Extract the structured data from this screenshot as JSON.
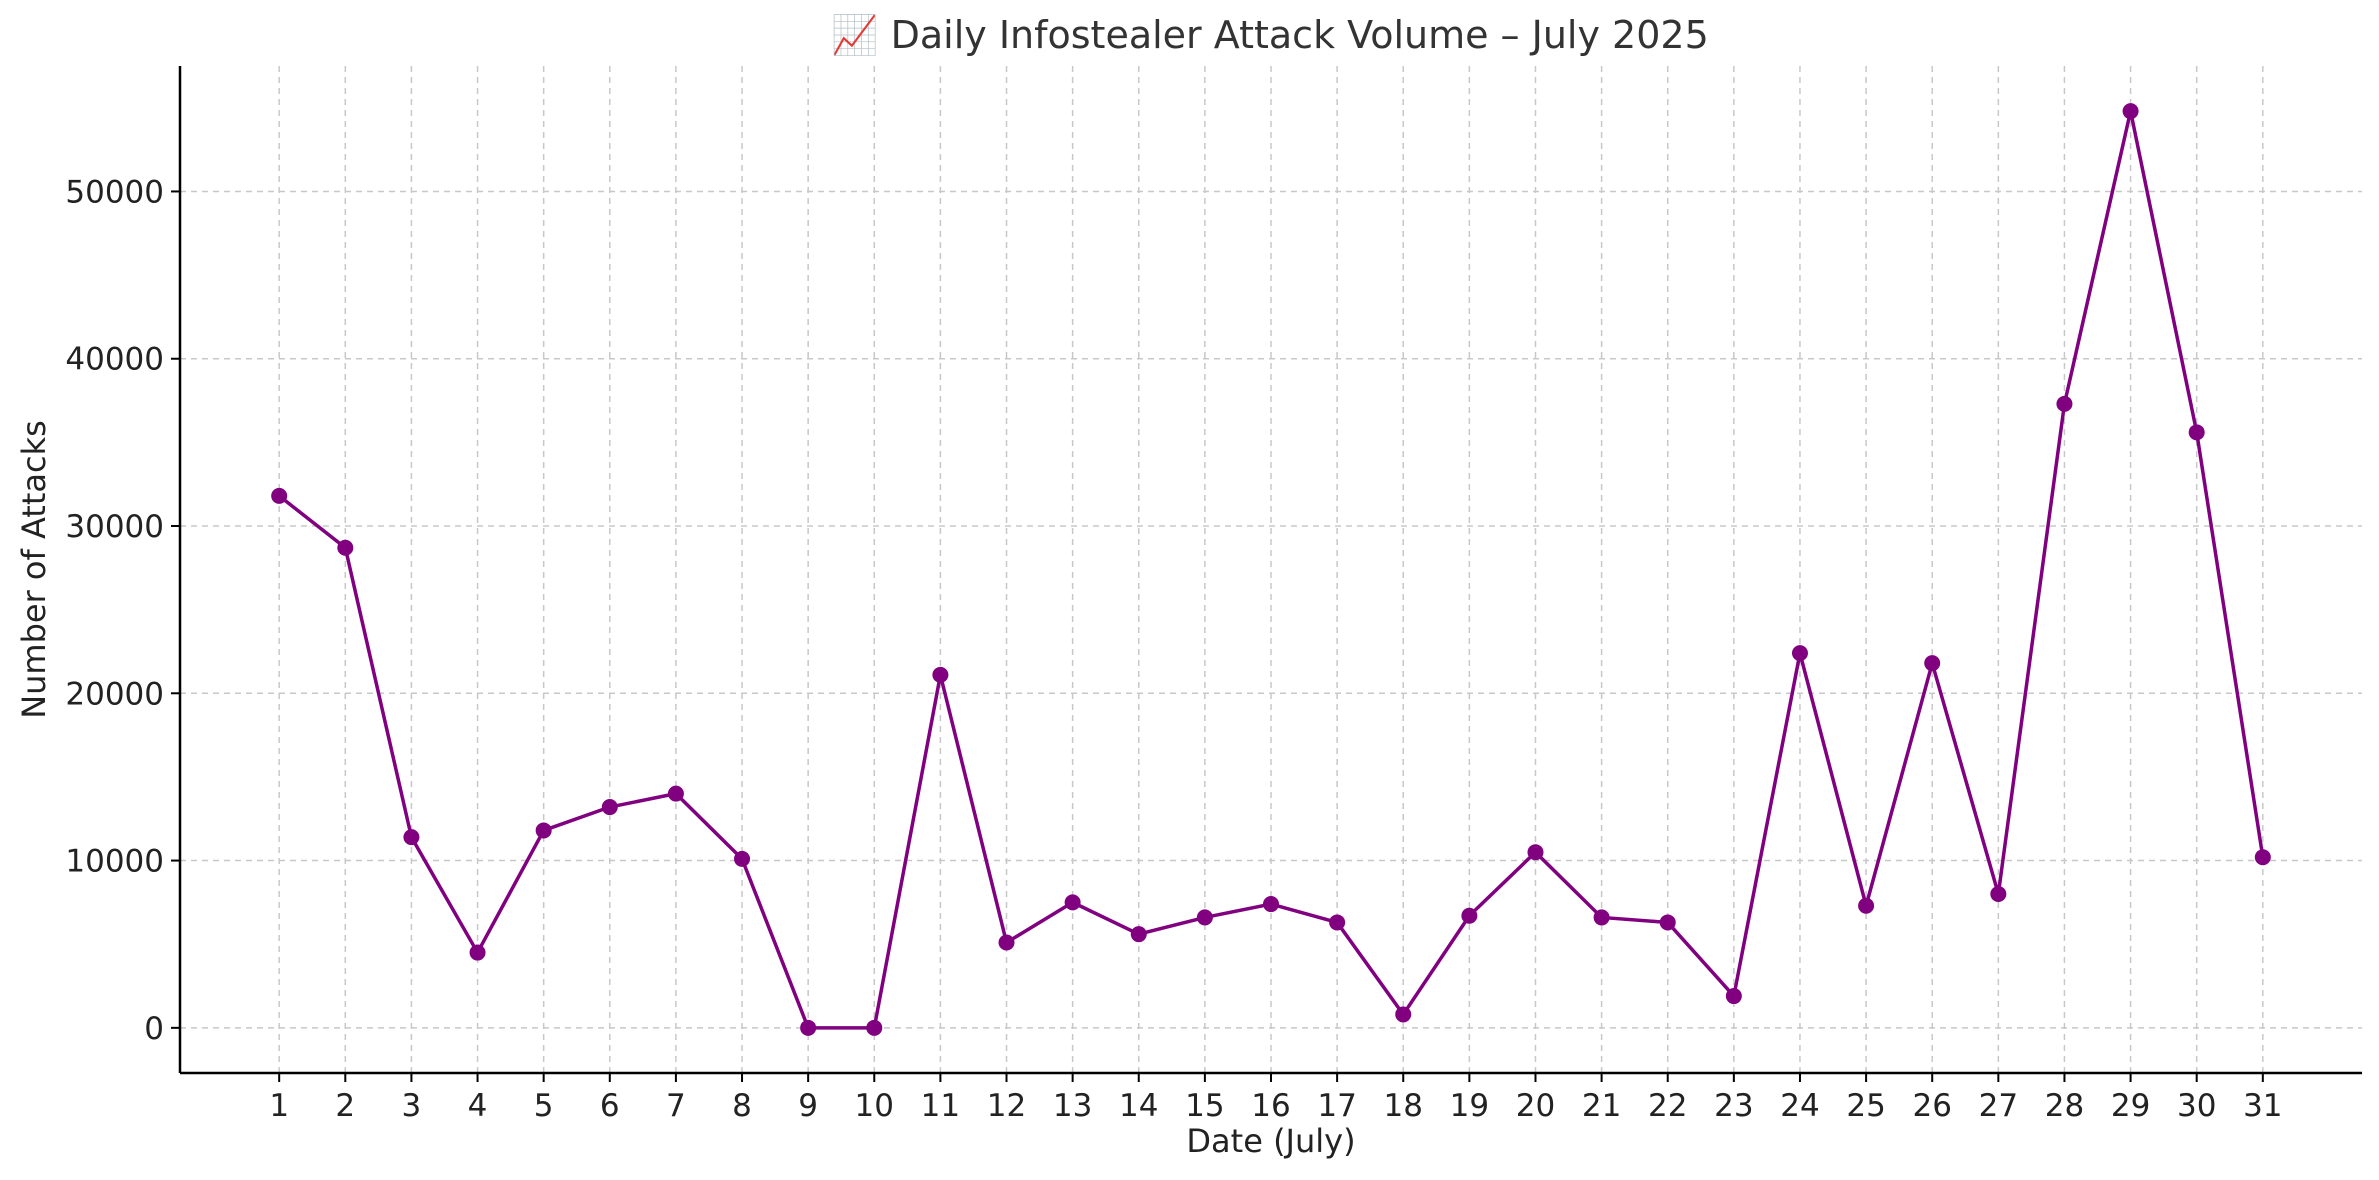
{
  "chart_data": {
    "type": "line",
    "title": "📈 Daily Infostealer Attack Volume – July 2025",
    "xlabel": "Date (July)",
    "ylabel": "Number of Attacks",
    "x": [
      1,
      2,
      3,
      4,
      5,
      6,
      7,
      8,
      9,
      10,
      11,
      12,
      13,
      14,
      15,
      16,
      17,
      18,
      19,
      20,
      21,
      22,
      23,
      24,
      25,
      26,
      27,
      28,
      29,
      30,
      31
    ],
    "series": [
      {
        "values": [
          31800,
          28700,
          11400,
          4500,
          11800,
          13200,
          14000,
          10100,
          0,
          0,
          21100,
          5100,
          7500,
          5600,
          6600,
          7400,
          6300,
          800,
          6700,
          10500,
          6600,
          6300,
          1900,
          22400,
          7300,
          21800,
          8000,
          37300,
          54800,
          35600,
          10200
        ],
        "color": "#800080",
        "marker": "circle"
      }
    ],
    "xlim": [
      -0.5,
      32.5
    ],
    "ylim": [
      -2700,
      57500
    ],
    "yticks": [
      0,
      10000,
      20000,
      30000,
      40000,
      50000
    ],
    "grid": true,
    "legend": "none"
  }
}
